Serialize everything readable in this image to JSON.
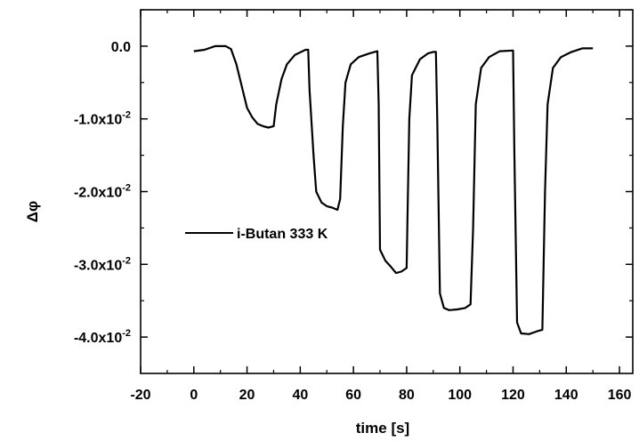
{
  "chart_data": {
    "type": "line",
    "xlabel": "time [s]",
    "ylabel": "Δφ",
    "xlim": [
      -20,
      165
    ],
    "ylim": [
      -0.045,
      0.005
    ],
    "x_ticks": [
      {
        "value": -20,
        "label": "-20"
      },
      {
        "value": 0,
        "label": "0"
      },
      {
        "value": 20,
        "label": "20"
      },
      {
        "value": 40,
        "label": "40"
      },
      {
        "value": 60,
        "label": "60"
      },
      {
        "value": 80,
        "label": "80"
      },
      {
        "value": 100,
        "label": "100"
      },
      {
        "value": 120,
        "label": "120"
      },
      {
        "value": 140,
        "label": "140"
      },
      {
        "value": 160,
        "label": "160"
      }
    ],
    "y_ticks": [
      {
        "value": 0.0,
        "base": "0.0",
        "exp": ""
      },
      {
        "value": -0.01,
        "base": "-1.0x10",
        "exp": "-2"
      },
      {
        "value": -0.02,
        "base": "-2.0x10",
        "exp": "-2"
      },
      {
        "value": -0.03,
        "base": "-3.0x10",
        "exp": "-2"
      },
      {
        "value": -0.04,
        "base": "-4.0x10",
        "exp": "-2"
      }
    ],
    "legend": {
      "position": "center-left"
    },
    "series": [
      {
        "name": "i-Butan 333 K",
        "color": "#000000",
        "points": [
          [
            0,
            -0.0007
          ],
          [
            4,
            -0.0005
          ],
          [
            8,
            0.0
          ],
          [
            12,
            0.0
          ],
          [
            14,
            -0.0004
          ],
          [
            16,
            -0.0025
          ],
          [
            18,
            -0.0055
          ],
          [
            20,
            -0.0085
          ],
          [
            22,
            -0.0098
          ],
          [
            24,
            -0.0107
          ],
          [
            26,
            -0.011
          ],
          [
            28,
            -0.0112
          ],
          [
            30,
            -0.011
          ],
          [
            31,
            -0.008
          ],
          [
            33,
            -0.0045
          ],
          [
            35,
            -0.0025
          ],
          [
            38,
            -0.0012
          ],
          [
            42,
            -0.0005
          ],
          [
            43,
            -0.0005
          ],
          [
            43.5,
            -0.006
          ],
          [
            45,
            -0.015
          ],
          [
            46,
            -0.02
          ],
          [
            48,
            -0.0215
          ],
          [
            50,
            -0.022
          ],
          [
            52,
            -0.0222
          ],
          [
            54,
            -0.0225
          ],
          [
            55,
            -0.021
          ],
          [
            56,
            -0.011
          ],
          [
            57,
            -0.005
          ],
          [
            59,
            -0.0025
          ],
          [
            62,
            -0.0015
          ],
          [
            66,
            -0.001
          ],
          [
            69,
            -0.0007
          ],
          [
            69.5,
            -0.008
          ],
          [
            70,
            -0.028
          ],
          [
            72,
            -0.0295
          ],
          [
            74,
            -0.0303
          ],
          [
            76,
            -0.0312
          ],
          [
            78,
            -0.031
          ],
          [
            80,
            -0.0305
          ],
          [
            80.5,
            -0.02
          ],
          [
            81,
            -0.01
          ],
          [
            82,
            -0.004
          ],
          [
            85,
            -0.0018
          ],
          [
            88,
            -0.001
          ],
          [
            90,
            -0.0008
          ],
          [
            91,
            -0.0008
          ],
          [
            91.5,
            -0.01
          ],
          [
            92.5,
            -0.034
          ],
          [
            94,
            -0.036
          ],
          [
            96,
            -0.0363
          ],
          [
            99,
            -0.0362
          ],
          [
            102,
            -0.036
          ],
          [
            104,
            -0.0355
          ],
          [
            105,
            -0.025
          ],
          [
            106,
            -0.008
          ],
          [
            108,
            -0.003
          ],
          [
            111,
            -0.0015
          ],
          [
            115,
            -0.0007
          ],
          [
            120,
            -0.0006
          ],
          [
            120.5,
            -0.015
          ],
          [
            121.5,
            -0.038
          ],
          [
            123,
            -0.0395
          ],
          [
            126,
            -0.0396
          ],
          [
            129,
            -0.0392
          ],
          [
            131,
            -0.039
          ],
          [
            132,
            -0.02
          ],
          [
            133,
            -0.008
          ],
          [
            135,
            -0.003
          ],
          [
            138,
            -0.0015
          ],
          [
            142,
            -0.0008
          ],
          [
            146,
            -0.0003
          ],
          [
            150,
            -0.0003
          ]
        ]
      }
    ]
  }
}
